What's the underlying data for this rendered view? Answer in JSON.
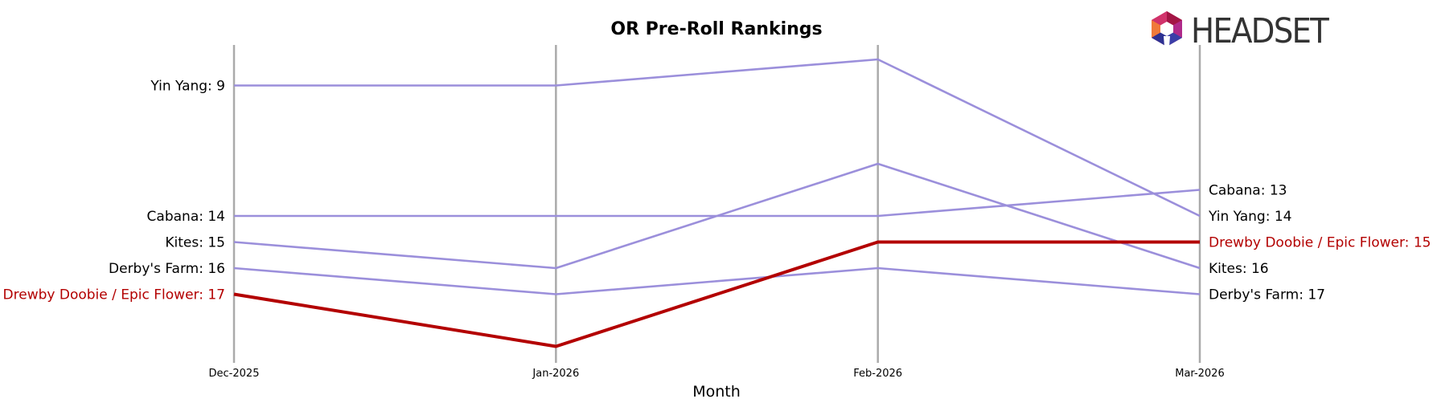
{
  "brand": {
    "name": "HEADSET"
  },
  "chart_data": {
    "type": "line",
    "title": "OR Pre-Roll Rankings",
    "xlabel": "Month",
    "ylabel": "",
    "x": [
      "Dec-2025",
      "Jan-2026",
      "Feb-2026",
      "Mar-2026"
    ],
    "y_inverted": true,
    "ylim": [
      20,
      8
    ],
    "grid": false,
    "highlight": "Drewby Doobie / Epic Flower",
    "colors": {
      "highlight": "#b30000",
      "other": "#9b8fdb",
      "gridline": "#aaaaaa"
    },
    "series": [
      {
        "name": "Yin Yang",
        "values": [
          9,
          9,
          8,
          14
        ],
        "start_label": "Yin Yang: 9",
        "end_label": "Yin Yang: 14"
      },
      {
        "name": "Cabana",
        "values": [
          14,
          14,
          14,
          13
        ],
        "start_label": "Cabana: 14",
        "end_label": "Cabana: 13"
      },
      {
        "name": "Kites",
        "values": [
          15,
          16,
          12,
          16
        ],
        "start_label": "Kites: 15",
        "end_label": "Kites: 16"
      },
      {
        "name": "Derby's Farm",
        "values": [
          16,
          17,
          16,
          17
        ],
        "start_label": "Derby's Farm: 16",
        "end_label": "Derby's Farm: 17"
      },
      {
        "name": "Drewby Doobie / Epic Flower",
        "values": [
          17,
          19,
          15,
          15
        ],
        "start_label": "Drewby Doobie / Epic Flower: 17",
        "end_label": "Drewby Doobie / Epic Flower: 15"
      }
    ]
  }
}
